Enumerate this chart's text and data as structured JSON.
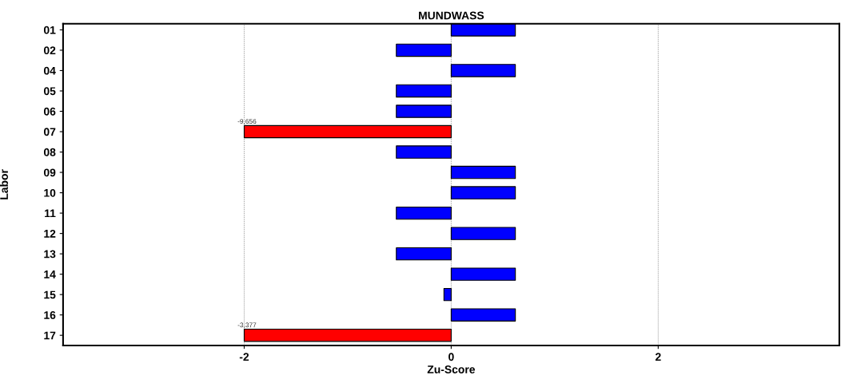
{
  "chart_data": {
    "type": "bar",
    "orientation": "horizontal",
    "title": "MUNDWASS",
    "xlabel": "Zu-Score",
    "ylabel": "Labor",
    "categories": [
      "01",
      "02",
      "04",
      "05",
      "06",
      "07",
      "08",
      "09",
      "10",
      "11",
      "12",
      "13",
      "14",
      "15",
      "16",
      "17"
    ],
    "values": [
      0.62,
      -0.53,
      0.62,
      -0.53,
      -0.53,
      -2,
      -0.53,
      0.62,
      0.62,
      -0.53,
      0.62,
      -0.53,
      0.62,
      -0.07,
      0.62,
      -2
    ],
    "colors": [
      "#0000ff",
      "#0000ff",
      "#0000ff",
      "#0000ff",
      "#0000ff",
      "#ff0000",
      "#0000ff",
      "#0000ff",
      "#0000ff",
      "#0000ff",
      "#0000ff",
      "#0000ff",
      "#0000ff",
      "#0000ff",
      "#0000ff",
      "#ff0000"
    ],
    "annotations": [
      {
        "text": "-9,656",
        "x": -2,
        "y": "07"
      },
      {
        "text": "-3,377",
        "x": -2,
        "y": "17"
      }
    ],
    "xlim": [
      -3.75,
      3.75
    ],
    "xticks": [
      -2,
      0,
      2
    ],
    "grid": "x"
  }
}
